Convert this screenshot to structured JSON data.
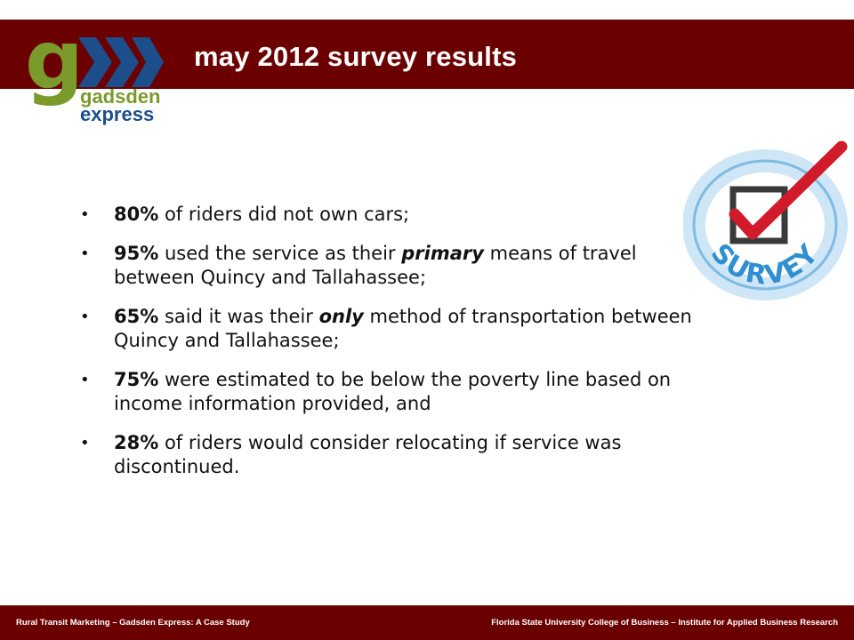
{
  "slide": {
    "title": "may 2012 survey results"
  },
  "logo": {
    "letter": "g",
    "line1": "gadsden",
    "line2": "express",
    "colors": {
      "green": "#7a9a2c",
      "blue": "#1c4e8c"
    }
  },
  "bullets": [
    {
      "pct": "80%",
      "pre": " of riders did not own cars;",
      "em": "",
      "post": ""
    },
    {
      "pct": "95%",
      "pre": " used the service as their ",
      "em": "primary",
      "post": " means of travel between Quincy and Tallahassee;"
    },
    {
      "pct": "65%",
      "pre": " said it was their ",
      "em": "only",
      "post": " method of transportation between Quincy and Tallahassee;"
    },
    {
      "pct": "75%",
      "pre": " were estimated to be below the poverty line based on income information provided, and",
      "em": "",
      "post": ""
    },
    {
      "pct": "28%",
      "pre": " of riders would consider relocating if service was discontinued.",
      "em": "",
      "post": ""
    }
  ],
  "graphic": {
    "ring_text": "SURVEY",
    "icon": "survey-checkmark-icon",
    "check_color": "#d11a2a",
    "ring_color": "#2f8fd0"
  },
  "footer": {
    "left": "Rural Transit Marketing – Gadsden Express: A Case Study",
    "right": "Florida State University College of Business – Institute for Applied Business Research"
  },
  "colors": {
    "brand_dark_red": "#6b0000"
  }
}
